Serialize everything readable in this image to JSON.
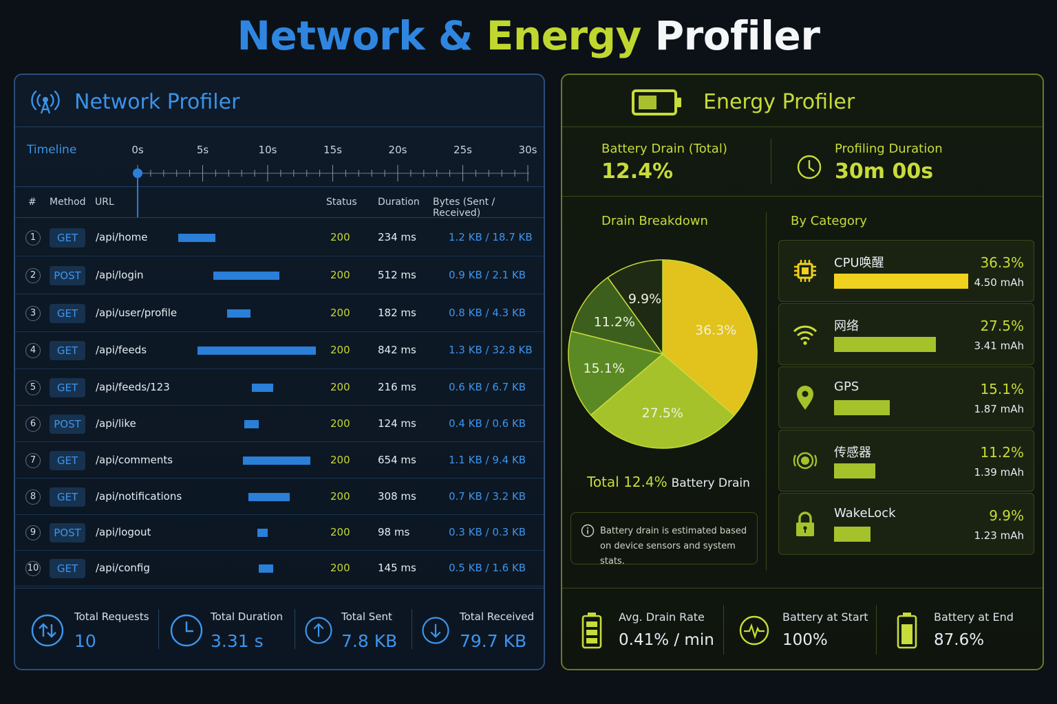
{
  "title": {
    "part1": "Network",
    "amp": "&",
    "part2": "Energy",
    "part3": "Profiler"
  },
  "network": {
    "title": "Network Profiler",
    "icon": "antenna-signal-icon",
    "timeline": {
      "label": "Timeline",
      "ticks": [
        "0s",
        "5s",
        "10s",
        "15s",
        "20s",
        "25s",
        "30s"
      ]
    },
    "columns": {
      "num": "#",
      "method": "Method",
      "url": "URL",
      "status": "Status",
      "duration": "Duration",
      "bytes": "Bytes (Sent / Received)"
    },
    "requests": [
      {
        "num": "1",
        "method": "GET",
        "url": "/api/home",
        "status": "200",
        "duration": "234 ms",
        "bytes": "1.2 KB /  18.7 KB",
        "start_s": 3.1,
        "span_s": 2.9
      },
      {
        "num": "2",
        "method": "POST",
        "url": "/api/login",
        "status": "200",
        "duration": "512 ms",
        "bytes": "0.9 KB /  2.1 KB",
        "start_s": 5.8,
        "span_s": 5.1
      },
      {
        "num": "3",
        "method": "GET",
        "url": "/api/user/profile",
        "status": "200",
        "duration": "182 ms",
        "bytes": "0.8 KB /  4.3 KB",
        "start_s": 6.9,
        "span_s": 1.8
      },
      {
        "num": "4",
        "method": "GET",
        "url": "/api/feeds",
        "status": "200",
        "duration": "842 ms",
        "bytes": "1.3 KB /  32.8 KB",
        "start_s": 4.6,
        "span_s": 9.1
      },
      {
        "num": "5",
        "method": "GET",
        "url": "/api/feeds/123",
        "status": "200",
        "duration": "216 ms",
        "bytes": "0.6 KB /  6.7 KB",
        "start_s": 8.8,
        "span_s": 1.6
      },
      {
        "num": "6",
        "method": "POST",
        "url": "/api/like",
        "status": "200",
        "duration": "124 ms",
        "bytes": "0.4 KB /  0.6 KB",
        "start_s": 8.2,
        "span_s": 1.1
      },
      {
        "num": "7",
        "method": "GET",
        "url": "/api/comments",
        "status": "200",
        "duration": "654 ms",
        "bytes": "1.1 KB /  9.4 KB",
        "start_s": 8.1,
        "span_s": 5.2
      },
      {
        "num": "8",
        "method": "GET",
        "url": "/api/notifications",
        "status": "200",
        "duration": "308 ms",
        "bytes": "0.7 KB /  3.2 KB",
        "start_s": 8.5,
        "span_s": 3.2
      },
      {
        "num": "9",
        "method": "POST",
        "url": "/api/logout",
        "status": "200",
        "duration": "98 ms",
        "bytes": "0.3 KB /  0.3 KB",
        "start_s": 9.2,
        "span_s": 0.8
      },
      {
        "num": "10",
        "method": "GET",
        "url": "/api/config",
        "status": "200",
        "duration": "145 ms",
        "bytes": "0.5 KB /  1.6 KB",
        "start_s": 9.3,
        "span_s": 1.1
      }
    ],
    "footer": [
      {
        "icon": "up-down-arrows-icon",
        "label": "Total Requests",
        "value": "10"
      },
      {
        "icon": "clock-icon",
        "label": "Total Duration",
        "value": "3.31 s"
      },
      {
        "icon": "upload-arrow-icon",
        "label": "Total Sent",
        "value": "7.8 KB"
      },
      {
        "icon": "download-arrow-icon",
        "label": "Total Received",
        "value": "79.7 KB"
      }
    ]
  },
  "energy": {
    "title": "Energy Profiler",
    "icon": "battery-icon",
    "summary": {
      "drain_label": "Battery Drain (Total)",
      "drain_value": "12.4%",
      "duration_label": "Profiling Duration",
      "duration_value": "30m 00s"
    },
    "breakdown_title": "Drain Breakdown",
    "category_title": "By Category",
    "chart_data": {
      "type": "pie",
      "categories": [
        "CPU唤醒",
        "网络",
        "GPS",
        "传感器",
        "WakeLock"
      ],
      "values": [
        36.3,
        27.5,
        15.1,
        11.2,
        9.9
      ],
      "labels": [
        "36.3%",
        "27.5%",
        "15.1%",
        "11.2%",
        "9.9%"
      ],
      "colors": [
        "#e2c21c",
        "#a5c22b",
        "#5b8a24",
        "#3d5f1e",
        "#1f2a14"
      ]
    },
    "total_value": "Total 12.4%",
    "total_label": "Battery Drain",
    "note": "Battery drain is estimated based on device sensors and system stats.",
    "categories": [
      {
        "icon": "cpu-chip-icon",
        "name": "CPU唤醒",
        "pct": "36.3%",
        "mah": "4.50 mAh",
        "fraction": 0.363,
        "color": "#f0d21e"
      },
      {
        "icon": "wifi-icon",
        "name": "网络",
        "pct": "27.5%",
        "mah": "3.41 mAh",
        "fraction": 0.275,
        "color": "#a5c22b"
      },
      {
        "icon": "location-pin-icon",
        "name": "GPS",
        "pct": "15.1%",
        "mah": "1.87 mAh",
        "fraction": 0.151,
        "color": "#a5c22b"
      },
      {
        "icon": "sensor-icon",
        "name": "传感器",
        "pct": "11.2%",
        "mah": "1.39 mAh",
        "fraction": 0.112,
        "color": "#a5c22b"
      },
      {
        "icon": "lock-icon",
        "name": "WakeLock",
        "pct": "9.9%",
        "mah": "1.23 mAh",
        "fraction": 0.099,
        "color": "#a5c22b"
      }
    ],
    "footer": [
      {
        "icon": "battery-level-icon",
        "label": "Avg. Drain Rate",
        "value": "0.41% / min"
      },
      {
        "icon": "heartbeat-icon",
        "label": "Battery at Start",
        "value": "100%"
      },
      {
        "icon": "battery-end-icon",
        "label": "Battery at End",
        "value": "87.6%"
      }
    ]
  }
}
